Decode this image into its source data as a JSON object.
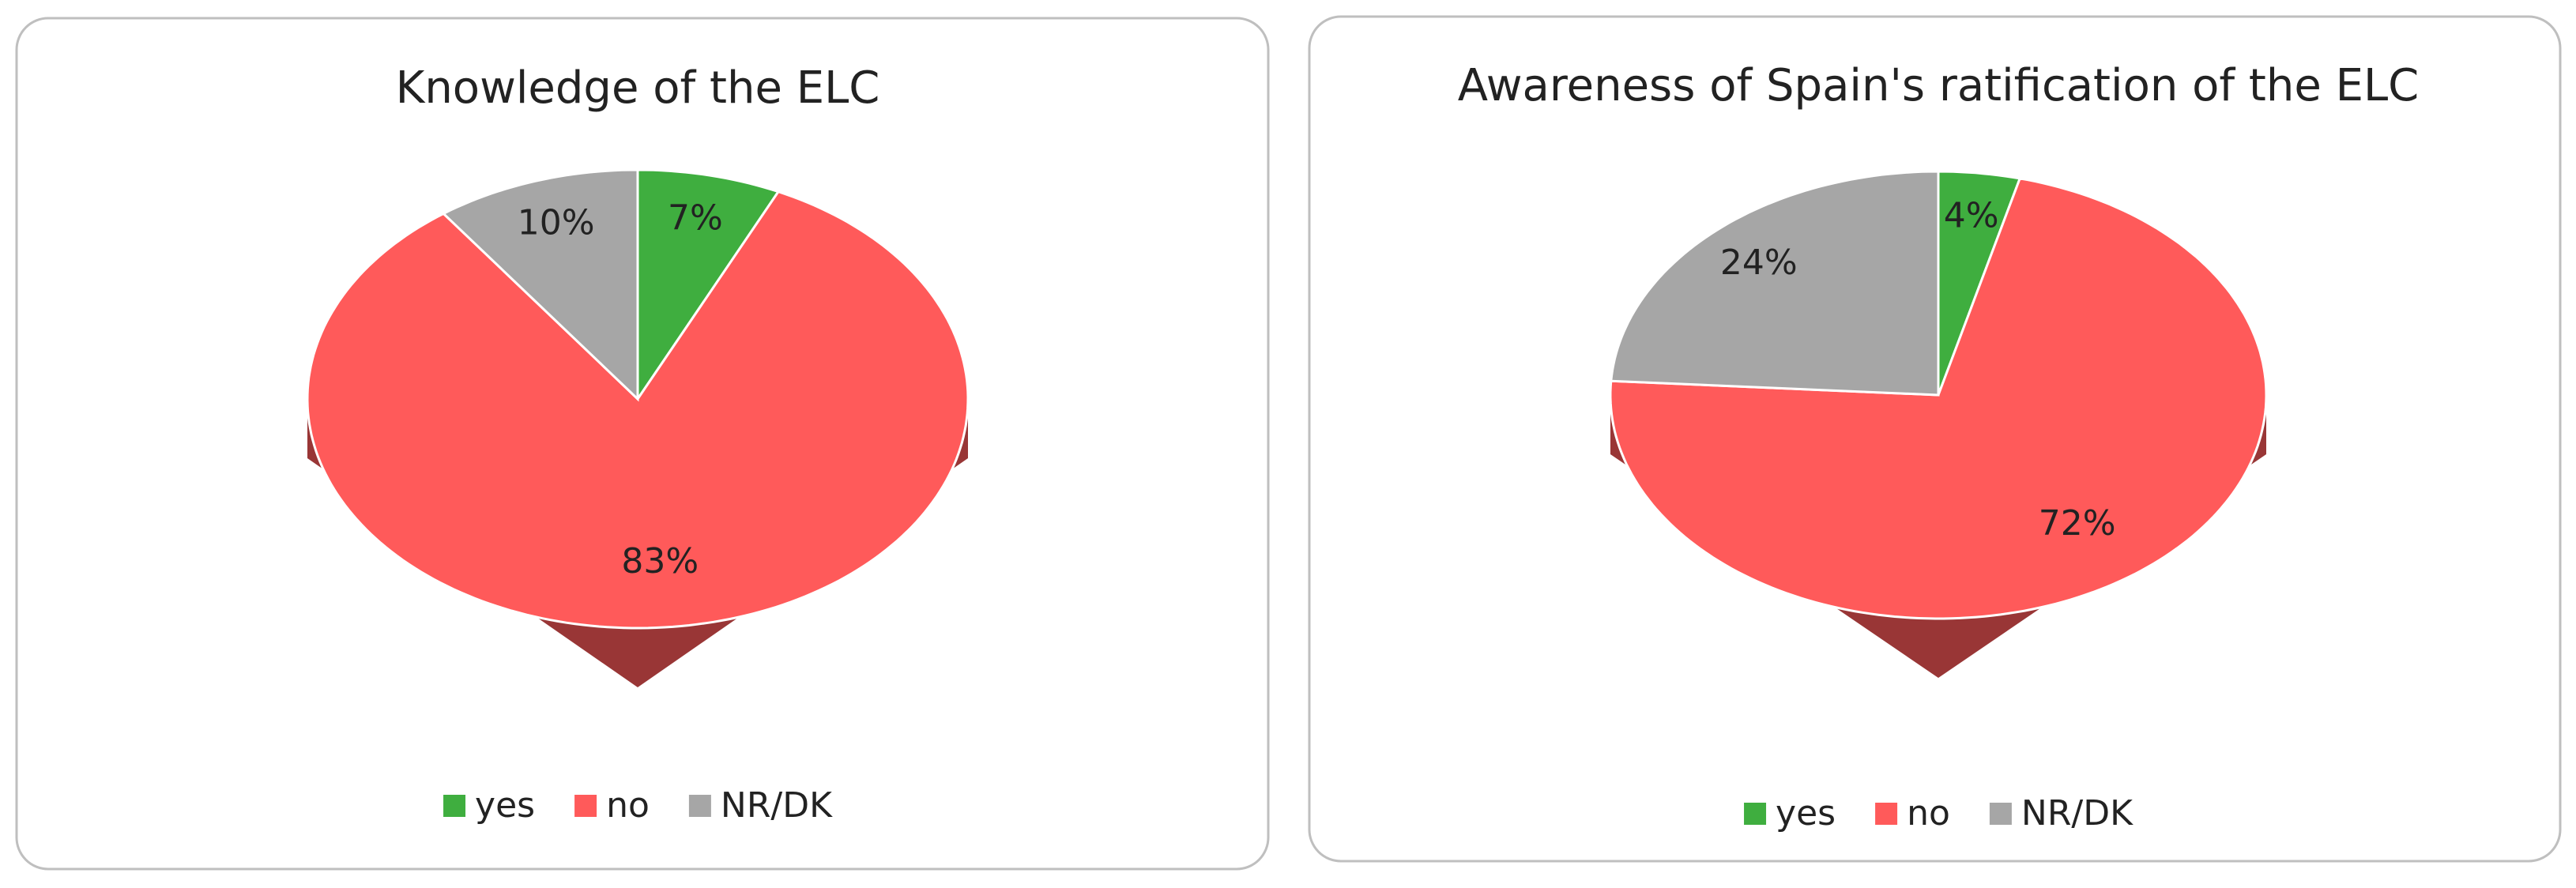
{
  "chart_data": [
    {
      "type": "pie",
      "title": "Knowledge of the ELC",
      "categories": [
        "yes",
        "no",
        "NR/DK"
      ],
      "values": [
        7,
        83,
        10
      ],
      "value_labels": [
        "7%",
        "83%",
        "10%"
      ],
      "colors": [
        "#3fae3f",
        "#ff5a5a",
        "#a6a6a6"
      ],
      "legend": "bottom"
    },
    {
      "type": "pie",
      "title": "Awareness of Spain's ratification of the ELC",
      "categories": [
        "yes",
        "no",
        "NR/DK"
      ],
      "values": [
        4,
        72,
        24
      ],
      "value_labels": [
        "4%",
        "72%",
        "24%"
      ],
      "colors": [
        "#3fae3f",
        "#ff5a5a",
        "#a6a6a6"
      ],
      "legend": "bottom"
    }
  ]
}
